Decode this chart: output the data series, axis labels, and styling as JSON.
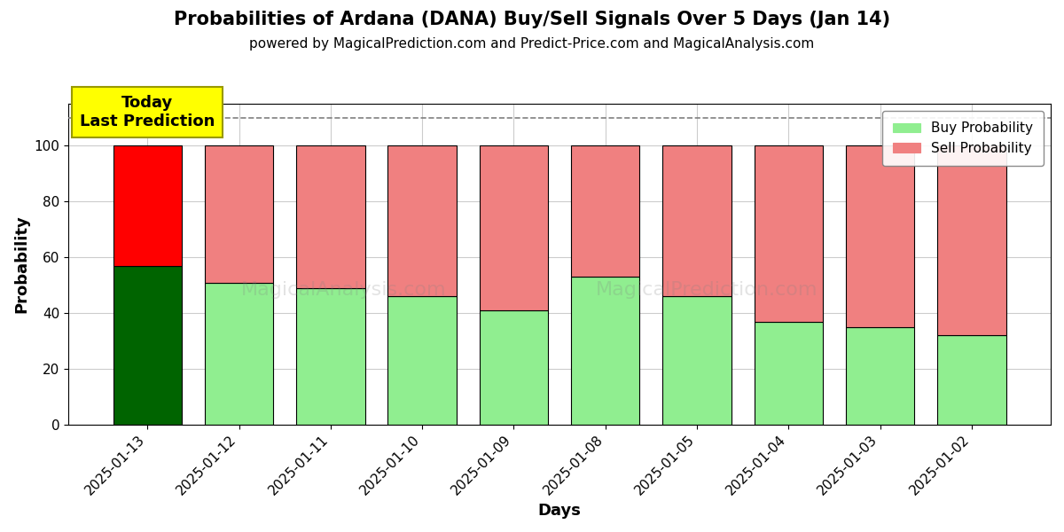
{
  "title": "Probabilities of Ardana (DANA) Buy/Sell Signals Over 5 Days (Jan 14)",
  "subtitle": "powered by MagicalPrediction.com and Predict-Price.com and MagicalAnalysis.com",
  "xlabel": "Days",
  "ylabel": "Probability",
  "categories": [
    "2025-01-13",
    "2025-01-12",
    "2025-01-11",
    "2025-01-10",
    "2025-01-09",
    "2025-01-08",
    "2025-01-05",
    "2025-01-04",
    "2025-01-03",
    "2025-01-02"
  ],
  "buy_values": [
    57,
    51,
    49,
    46,
    41,
    53,
    46,
    37,
    35,
    32
  ],
  "sell_values": [
    43,
    49,
    51,
    54,
    59,
    47,
    54,
    63,
    65,
    68
  ],
  "today_buy_color": "#006400",
  "today_sell_color": "#ff0000",
  "other_buy_color": "#90EE90",
  "other_sell_color": "#F08080",
  "today_label_bg": "#ffff00",
  "today_label_text": "Today\nLast Prediction",
  "legend_buy": "Buy Probability",
  "legend_sell": "Sell Probability",
  "ylim": [
    0,
    115
  ],
  "dashed_line_y": 110,
  "background_color": "#ffffff",
  "grid_color": "#cccccc",
  "bar_width": 0.75
}
